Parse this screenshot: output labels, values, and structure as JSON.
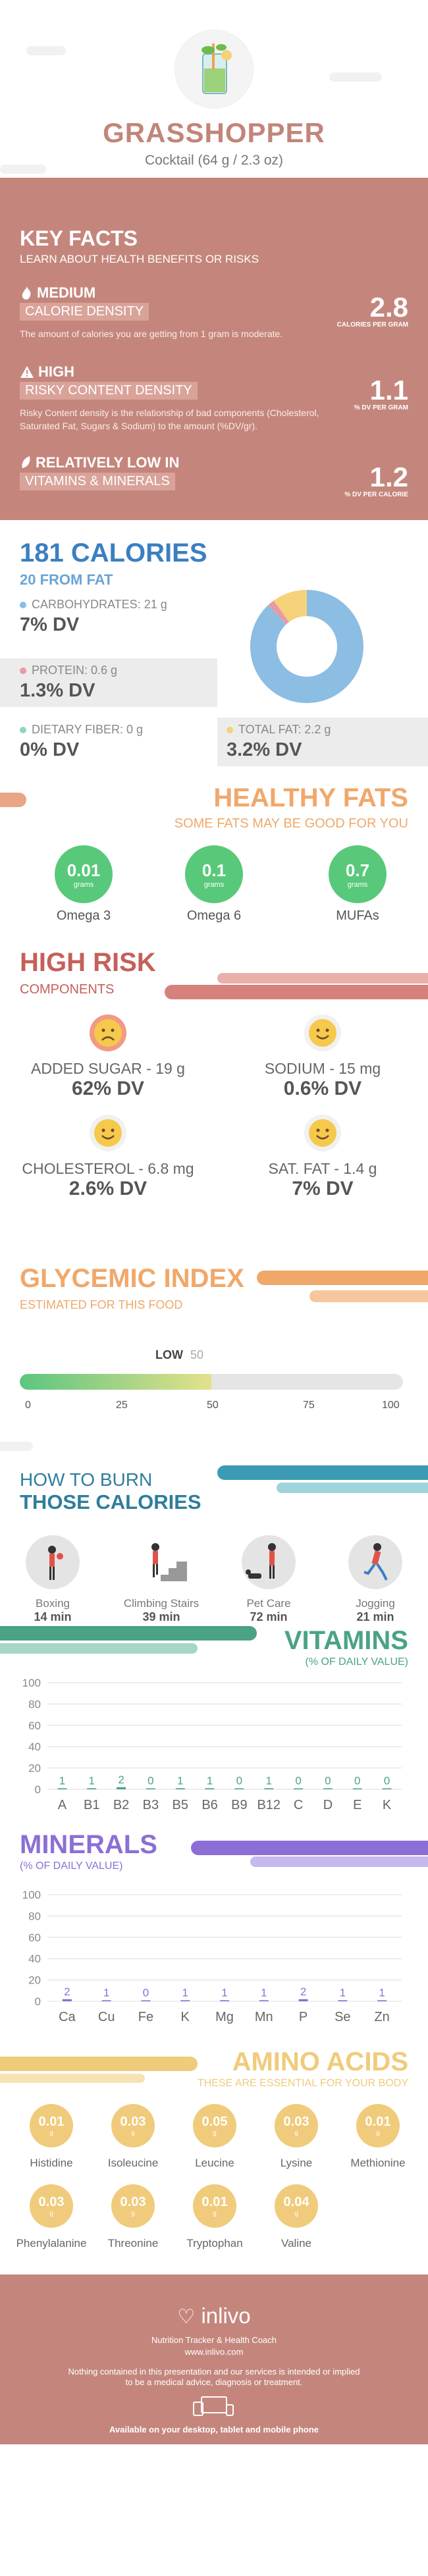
{
  "header": {
    "title": "GRASSHOPPER",
    "subtitle": "Cocktail (64 g / 2.3 oz)"
  },
  "key_facts": {
    "title": "KEY FACTS",
    "subtitle": "LEARN ABOUT HEALTH BENEFITS OR RISKS",
    "items": [
      {
        "icon": "flame-icon",
        "level": "MEDIUM",
        "name": "CALORIE DENSITY",
        "desc": "The amount of calories you are getting from 1 gram is moderate.",
        "value": "2.8",
        "unit": "CALORIES PER GRAM"
      },
      {
        "icon": "warning-icon",
        "level": "HIGH",
        "name": "RISKY CONTENT DENSITY",
        "desc": "Risky Content density is the relationship of bad components (Cholesterol, Saturated Fat, Sugars & Sodium) to the amount (%DV/gr).",
        "value": "1.1",
        "unit": "% DV PER GRAM"
      },
      {
        "icon": "leaf-icon",
        "level": "RELATIVELY LOW  IN",
        "name": "VITAMINS & MINERALS",
        "desc": "",
        "value": "1.2",
        "unit": "% DV PER CALORIE"
      }
    ]
  },
  "calories": {
    "title": "181 CALORIES",
    "subtitle": "20 FROM FAT",
    "nutrients": [
      {
        "label": "CARBOHYDRATES: 21 g",
        "dv": "7% DV",
        "color": "#8cbde3"
      },
      {
        "label": "PROTEIN: 0.6 g",
        "dv": "1.3% DV",
        "color": "#e89aa5"
      },
      {
        "label": "DIETARY FIBER: 0 g",
        "dv": "0% DV",
        "color": "#8fd4c4"
      },
      {
        "label": "TOTAL FAT: 2.2 g",
        "dv": "3.2% DV",
        "color": "#f5d27a"
      }
    ],
    "donut": [
      {
        "name": "carbohydrates",
        "value": 88,
        "color": "#8cbde3"
      },
      {
        "name": "protein",
        "value": 2,
        "color": "#e89aa5"
      },
      {
        "name": "fat",
        "value": 10,
        "color": "#f5d27a"
      }
    ]
  },
  "fats": {
    "title": "HEALTHY FATS",
    "subtitle": "SOME FATS MAY BE GOOD FOR YOU",
    "items": [
      {
        "value": "0.01",
        "unit": "grams",
        "name": "Omega 3"
      },
      {
        "value": "0.1",
        "unit": "grams",
        "name": "Omega 6"
      },
      {
        "value": "0.7",
        "unit": "grams",
        "name": "MUFAs"
      }
    ]
  },
  "risk": {
    "title": "HIGH RISK",
    "subtitle": "COMPONENTS",
    "items": [
      {
        "label": "ADDED SUGAR - 19 g",
        "dv": "62% DV",
        "mood": "sad"
      },
      {
        "label": "SODIUM - 15 mg",
        "dv": "0.6% DV",
        "mood": "happy"
      },
      {
        "label": "CHOLESTEROL - 6.8 mg",
        "dv": "2.6% DV",
        "mood": "happy"
      },
      {
        "label": "SAT. FAT - 1.4 g",
        "dv": "7% DV",
        "mood": "happy"
      }
    ]
  },
  "glycemic": {
    "title": "GLYCEMIC INDEX",
    "subtitle": "ESTIMATED FOR THIS FOOD",
    "level": "LOW",
    "value": "50",
    "ticks": [
      "0",
      "25",
      "50",
      "75",
      "100"
    ],
    "fill_fraction": 0.5
  },
  "burn": {
    "title_line1": "HOW TO BURN",
    "title_line2": "THOSE CALORIES",
    "items": [
      {
        "name": "Boxing",
        "minutes": "14 min",
        "icon": "boxing-icon"
      },
      {
        "name": "Climbing Stairs",
        "minutes": "39 min",
        "icon": "stairs-icon"
      },
      {
        "name": "Pet Care",
        "minutes": "72 min",
        "icon": "pet-care-icon"
      },
      {
        "name": "Jogging",
        "minutes": "21 min",
        "icon": "jogging-icon"
      }
    ]
  },
  "chart_data": [
    {
      "type": "bar",
      "title": "VITAMINS",
      "subtitle": "(% OF DAILY VALUE)",
      "categories": [
        "A",
        "B1",
        "B2",
        "B3",
        "B5",
        "B6",
        "B9",
        "B12",
        "C",
        "D",
        "E",
        "K"
      ],
      "values": [
        1,
        1,
        2,
        0,
        1,
        1,
        0,
        1,
        0,
        0,
        0,
        0
      ],
      "ylim": [
        0,
        100
      ],
      "yticks": [
        "0",
        "20",
        "40",
        "60",
        "80",
        "100"
      ],
      "grid": true,
      "color": "#4aa384"
    },
    {
      "type": "bar",
      "title": "MINERALS",
      "subtitle": "(% OF DAILY VALUE)",
      "categories": [
        "Ca",
        "Cu",
        "Fe",
        "K",
        "Mg",
        "Mn",
        "P",
        "Se",
        "Zn"
      ],
      "values": [
        2,
        1,
        0,
        1,
        1,
        1,
        2,
        1,
        1
      ],
      "ylim": [
        0,
        100
      ],
      "yticks": [
        "0",
        "20",
        "40",
        "60",
        "80",
        "100"
      ],
      "grid": true,
      "color": "#8c6fd6"
    }
  ],
  "amino": {
    "title": "AMINO ACIDS",
    "subtitle": "THESE ARE ESSENTIAL FOR YOUR BODY",
    "unit": "g",
    "items": [
      {
        "value": "0.01",
        "name": "Histidine"
      },
      {
        "value": "0.03",
        "name": "Isoleucine"
      },
      {
        "value": "0.05",
        "name": "Leucine"
      },
      {
        "value": "0.03",
        "name": "Lysine"
      },
      {
        "value": "0.01",
        "name": "Methionine"
      },
      {
        "value": "0.03",
        "name": "Phenylalanine"
      },
      {
        "value": "0.03",
        "name": "Threonine"
      },
      {
        "value": "0.01",
        "name": "Tryptophan"
      },
      {
        "value": "0.04",
        "name": "Valine"
      }
    ]
  },
  "footer": {
    "brand": "inlivo",
    "tagline": "Nutrition Tracker & Health Coach",
    "url": "www.inlivo.com",
    "disclaimer1": "Nothing contained in this presentation and our services is intended or implied",
    "disclaimer2": "to be a medical advice, diagnosis or treatment.",
    "availability": "Available on your desktop, tablet and mobile phone"
  }
}
